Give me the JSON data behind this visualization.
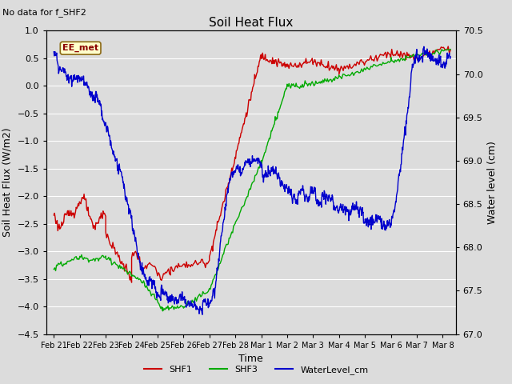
{
  "title": "Soil Heat Flux",
  "subtitle": "No data for f_SHF2",
  "xlabel": "Time",
  "ylabel_left": "Soil Heat Flux (W/m2)",
  "ylabel_right": "Water level (cm)",
  "ylim_left": [
    -4.5,
    1.0
  ],
  "ylim_right": [
    67.0,
    70.5
  ],
  "background_color": "#dcdcdc",
  "plot_bg_color": "#dcdcdc",
  "grid_color": "#ffffff",
  "annotation_box_text": "EE_met",
  "annotation_box_facecolor": "#ffffcc",
  "annotation_box_edgecolor": "#8b6914",
  "line_colors": {
    "SHF1": "#cc0000",
    "SHF3": "#00aa00",
    "WaterLevel_cm": "#0000cc"
  },
  "line_widths": {
    "SHF1": 1.0,
    "SHF3": 1.0,
    "WaterLevel_cm": 1.0
  },
  "tick_labels": [
    "Feb 21",
    "Feb 22",
    "Feb 23",
    "Feb 24",
    "Feb 25",
    "Feb 26",
    "Feb 27",
    "Feb 28",
    "Mar 1",
    "Mar 2",
    "Mar 3",
    "Mar 4",
    "Mar 5",
    "Mar 6",
    "Mar 7",
    "Mar 8"
  ],
  "yticks_left": [
    -4.5,
    -4.0,
    -3.5,
    -3.0,
    -2.5,
    -2.0,
    -1.5,
    -1.0,
    -0.5,
    0.0,
    0.5,
    1.0
  ],
  "yticks_right": [
    67.0,
    67.5,
    68.0,
    68.5,
    69.0,
    69.5,
    70.0,
    70.5
  ]
}
